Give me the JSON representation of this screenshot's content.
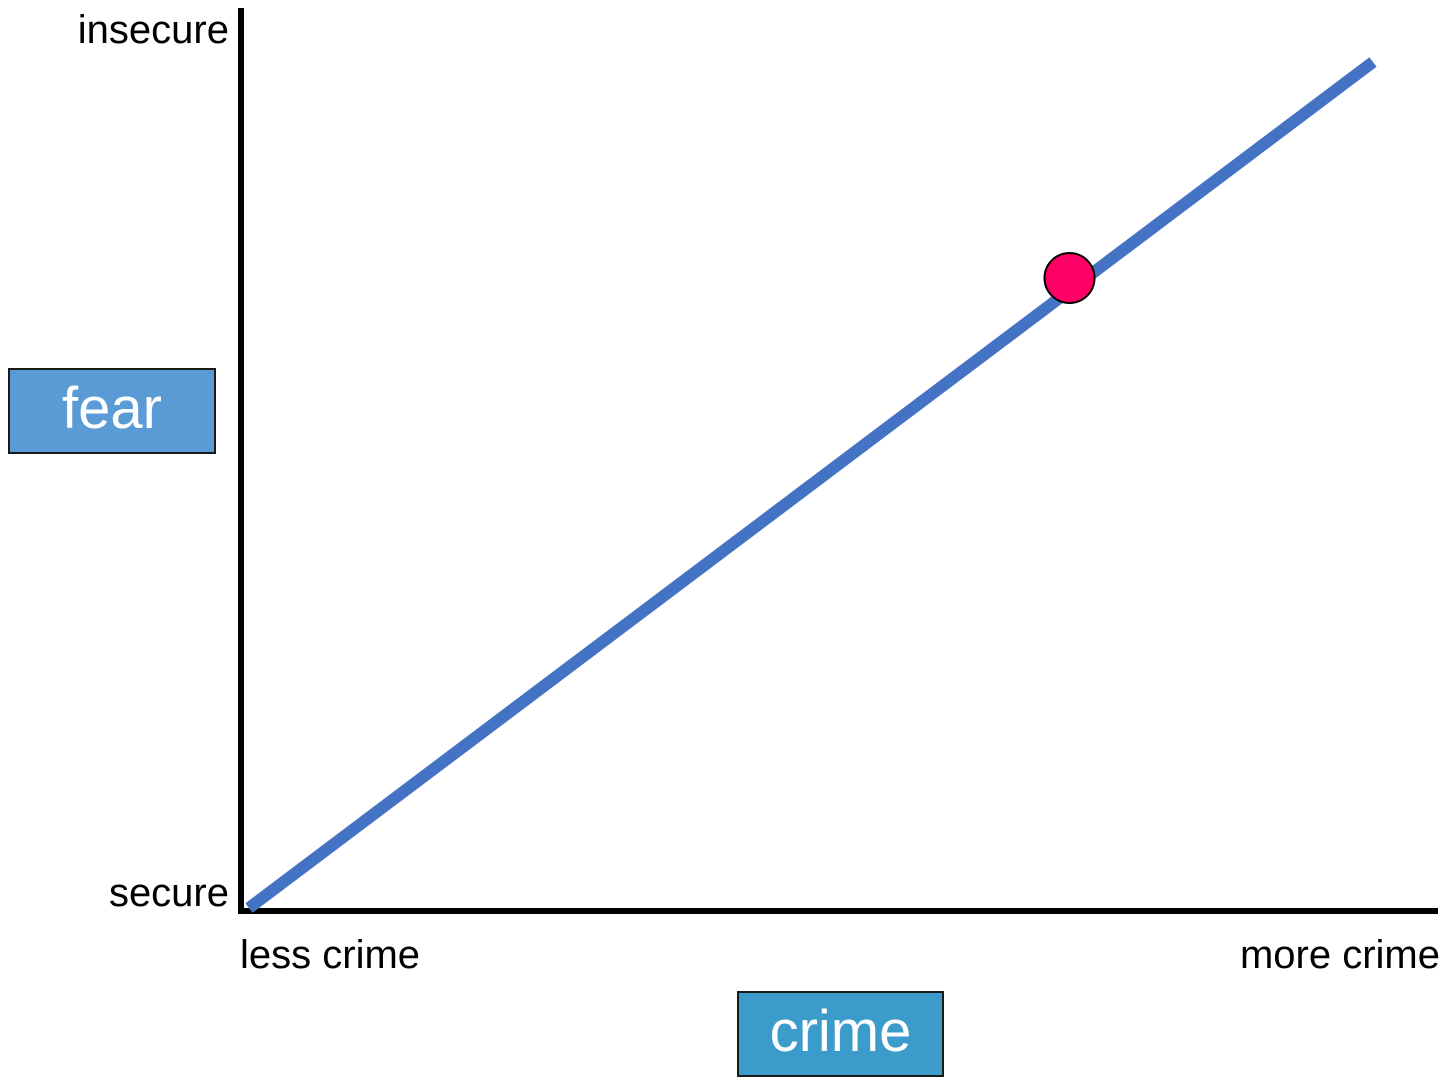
{
  "chart_data": {
    "type": "line",
    "title": "",
    "xlabel": "crime",
    "ylabel": "fear",
    "x_ticks": [
      {
        "value": 0,
        "label": "less crime"
      },
      {
        "value": 100,
        "label": "more crime"
      }
    ],
    "y_ticks": [
      {
        "value": 0,
        "label": "secure"
      },
      {
        "value": 100,
        "label": "insecure"
      }
    ],
    "xlim": [
      0,
      100
    ],
    "ylim": [
      0,
      100
    ],
    "grid": false,
    "legend": "none",
    "series": [
      {
        "x": [
          0,
          100
        ],
        "y": [
          0,
          94
        ],
        "color": "#4472c4"
      }
    ],
    "highlight_point": {
      "x": 73,
      "y": 70,
      "color": "#ff0066"
    },
    "colors": {
      "axis": "#000000",
      "ylabel_box": "#5b9bd5",
      "xlabel_box": "#3b9ccc",
      "label_text": "#ffffff"
    }
  }
}
